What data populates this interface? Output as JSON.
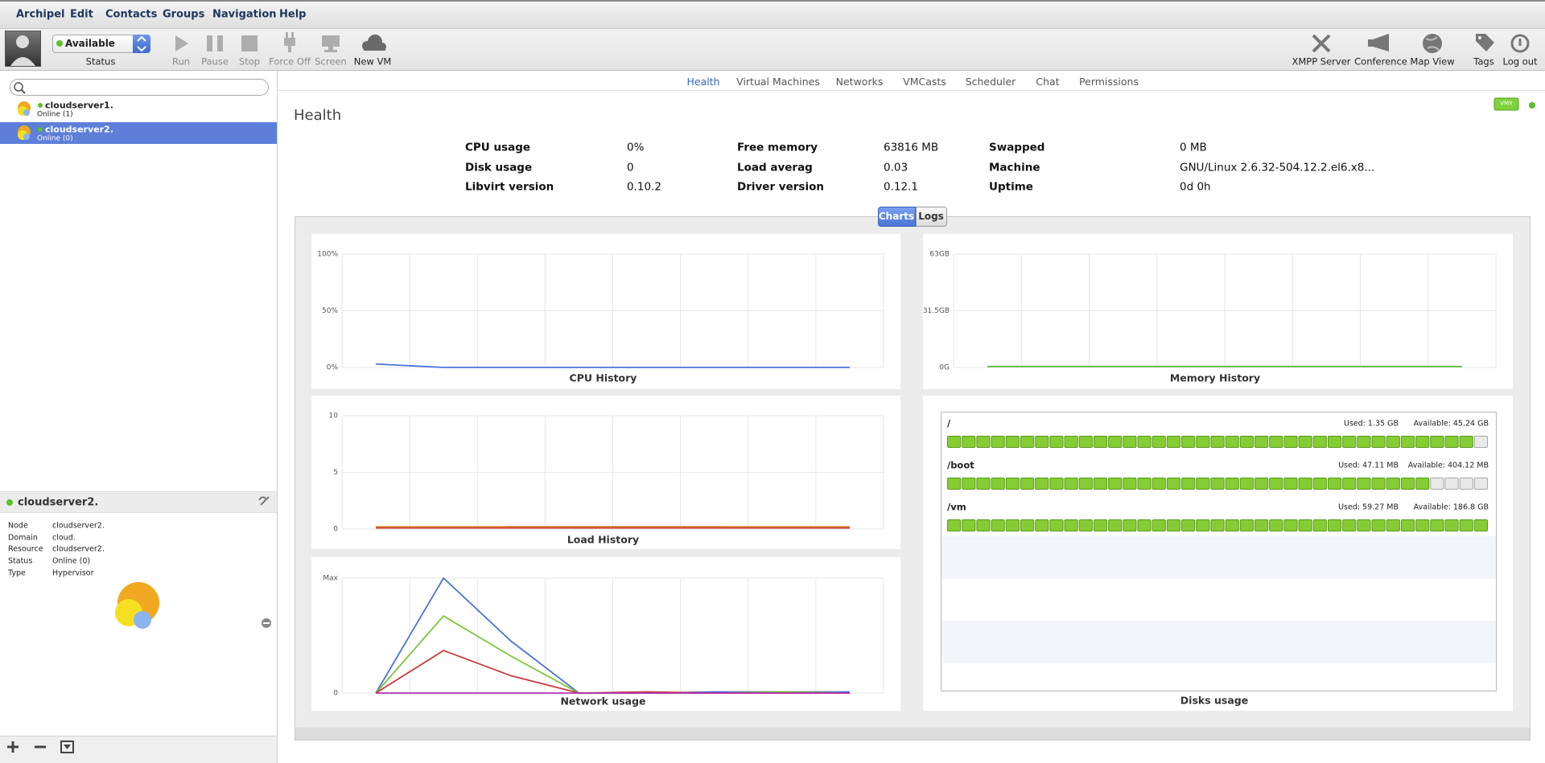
{
  "menu": [
    "Archipel",
    "Edit",
    "Contacts",
    "Groups",
    "Navigation",
    "Help"
  ],
  "status": {
    "value": "Available",
    "label": "Status"
  },
  "toolbar": [
    "Run",
    "Pause",
    "Stop",
    "Force Off",
    "Screen",
    "New VM"
  ],
  "toolbar_right": [
    "XMPP Server",
    "Conference",
    "Map View",
    "Tags",
    "Log out"
  ],
  "contacts": [
    {
      "name": "cloudserver1.",
      "status": "Online (1)"
    },
    {
      "name": "cloudserver2.",
      "status": "Online (0)"
    }
  ],
  "node": {
    "title": "cloudserver2.",
    "fields": [
      [
        "Node",
        "cloudserver2."
      ],
      [
        "Domain",
        "cloud."
      ],
      [
        "Resource",
        "cloudserver2."
      ],
      [
        "Status",
        "Online (0)"
      ],
      [
        "Type",
        "Hypervisor"
      ]
    ]
  },
  "tabs": [
    "Health",
    "Virtual Machines",
    "Networks",
    "VMCasts",
    "Scheduler",
    "Chat",
    "Permissions"
  ],
  "badge": "VMX",
  "health": {
    "title": "Health",
    "stats": [
      [
        "CPU usage",
        "0%",
        "Free memory",
        "63816 MB",
        "Swapped",
        "0 MB"
      ],
      [
        "Disk usage",
        "0",
        "Load averag",
        "0.03",
        "Machine",
        "GNU/Linux 2.6.32-504.12.2.el6.x8..."
      ],
      [
        "Libvirt version",
        "0.10.2",
        "Driver version",
        "0.12.1",
        "Uptime",
        "0d 0h"
      ]
    ]
  },
  "subtabs": [
    "Charts",
    "Logs"
  ],
  "chart_data": [
    {
      "type": "line",
      "title": "CPU History",
      "categories": [
        null,
        null,
        null,
        null,
        null,
        null,
        null,
        null
      ],
      "ylim": [
        0,
        100
      ],
      "yticks": [
        {
          "value": 0,
          "label": "0%"
        },
        {
          "value": 50,
          "label": "50%"
        },
        {
          "value": 100,
          "label": "100%"
        }
      ],
      "grid": true,
      "series": [
        {
          "color": "#4a72d8",
          "values": [
            3,
            0,
            0,
            0,
            0,
            0,
            0,
            0
          ]
        }
      ]
    },
    {
      "type": "line",
      "title": "Memory History",
      "categories": [
        null,
        null,
        null,
        null,
        null,
        null,
        null,
        null
      ],
      "ylim": [
        0,
        63
      ],
      "yticks": [
        {
          "value": 0,
          "label": "0G"
        },
        {
          "value": 31.5,
          "label": "31.5GB"
        },
        {
          "value": 63,
          "label": "63GB"
        }
      ],
      "grid": true,
      "series": [
        {
          "color": "#5bb82e",
          "values": [
            0.5,
            0.5,
            0.5,
            0.5,
            0.5,
            0.5,
            0.5,
            0.5
          ]
        }
      ]
    },
    {
      "type": "line",
      "title": "Load History",
      "categories": [
        null,
        null,
        null,
        null,
        null,
        null,
        null,
        null
      ],
      "ylim": [
        0,
        10
      ],
      "yticks": [
        0,
        5,
        10
      ],
      "grid": true,
      "series": [
        {
          "color": "#4a72d8",
          "values": [
            0.1,
            0.1,
            0.2,
            0.2,
            0.2,
            0.2,
            0.1,
            0.1
          ]
        },
        {
          "color": "#e0902a",
          "values": [
            0.2,
            0.2,
            0.2,
            0.2,
            0.2,
            0.2,
            0.2,
            0.2
          ]
        },
        {
          "color": "#c83a3a",
          "values": [
            0.1,
            0.1,
            0.1,
            0.1,
            0.1,
            0.1,
            0.1,
            0.1
          ]
        }
      ]
    },
    {
      "type": "line",
      "title": "Network usage",
      "categories": [
        null,
        null,
        null,
        null,
        null,
        null,
        null,
        null
      ],
      "ylim": [
        0,
        100
      ],
      "yticks": [
        0,
        {
          "value": 100,
          "label": "Max"
        }
      ],
      "grid": true,
      "series": [
        {
          "color": "#4a72d8",
          "values": [
            0,
            100,
            45,
            0,
            0,
            1,
            1,
            1
          ]
        },
        {
          "color": "#7ec63a",
          "values": [
            0,
            67,
            32,
            0,
            0,
            0,
            1,
            0
          ]
        },
        {
          "color": "#c83a3a",
          "values": [
            0,
            37,
            15,
            0,
            1,
            0,
            0,
            0
          ]
        },
        {
          "color": "#b030b0",
          "values": [
            0,
            0,
            0,
            0,
            0,
            0,
            0,
            0
          ]
        }
      ]
    }
  ],
  "disks": {
    "title": "Disks usage",
    "items": [
      {
        "mount": "/",
        "used": "Used: 1.35 GB",
        "available": "Available: 45.24 GB",
        "filled": 36,
        "blocks": 37
      },
      {
        "mount": "/boot",
        "used": "Used: 47.11 MB",
        "available": "Available: 404.12 MB",
        "filled": 33,
        "blocks": 37
      },
      {
        "mount": "/vm",
        "used": "Used: 59.27 MB",
        "available": "Available: 186.8 GB",
        "filled": 37,
        "blocks": 37
      }
    ]
  }
}
